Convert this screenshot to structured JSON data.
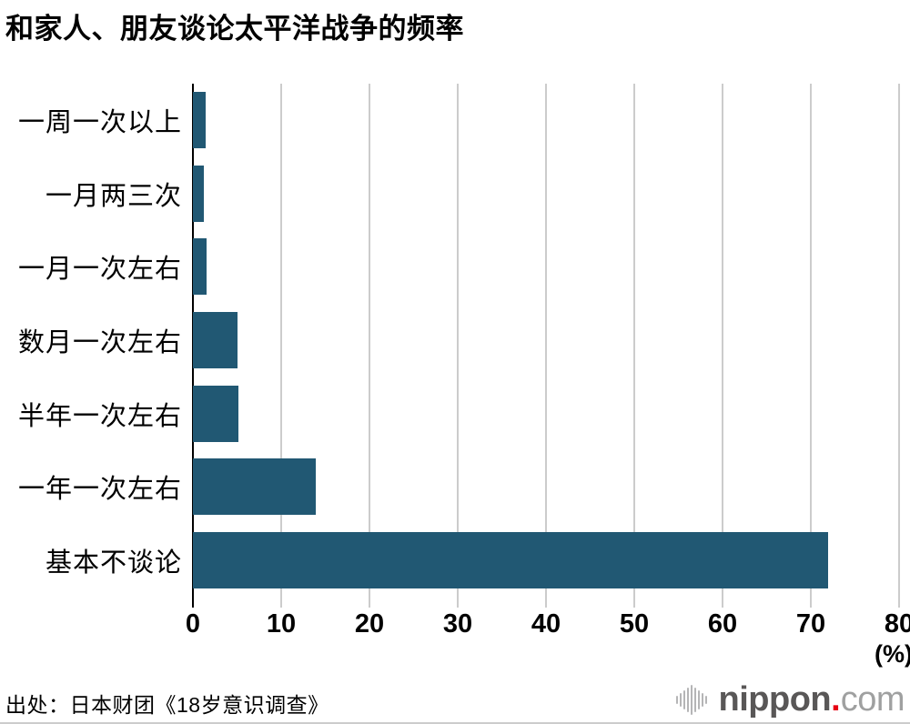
{
  "header": {
    "title": "和家人、朋友谈论太平洋战争的频率"
  },
  "chart_data": {
    "type": "bar",
    "orientation": "horizontal",
    "title": "和家人、朋友谈论太平洋战争的频率",
    "categories": [
      "一周一次以上",
      "一月两三次",
      "一月一次左右",
      "数月一次左右",
      "半年一次左右",
      "一年一次左右",
      "基本不谈论"
    ],
    "values": [
      1.4,
      1.2,
      1.5,
      5.1,
      5.2,
      13.9,
      72.0
    ],
    "xlim": [
      0,
      80
    ],
    "x_ticks": [
      0,
      10,
      20,
      30,
      40,
      50,
      60,
      70,
      80
    ],
    "unit_label": "(%)",
    "grid": true,
    "legend": "none",
    "bar_color": "#215873",
    "gridline_color": "#cccccc",
    "axis_color": "#000000",
    "label_color": "#000000"
  },
  "footer": {
    "source": "出处：日本财团《18岁意识调查》",
    "logo": {
      "icon": "soundwave-icon",
      "name": "nippon",
      "dot": ".",
      "tld": "com",
      "name_color": "#595757",
      "dot_color": "#e60012",
      "tld_color": "#9fa0a0",
      "icon_color": "#b5b5b6"
    }
  },
  "misc": {
    "bottom_border_color": "#cccccc"
  }
}
